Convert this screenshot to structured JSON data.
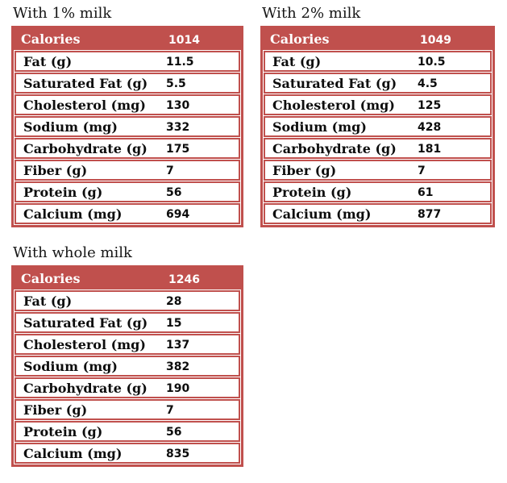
{
  "colors": {
    "accent": "#c0504d",
    "header_text": "#ffffff",
    "body_text": "#0d0d0d",
    "title_text": "#161616",
    "background": "#ffffff"
  },
  "tables": [
    {
      "title": "With 1% milk",
      "header": {
        "label": "Calories",
        "value": "1014"
      },
      "rows": [
        {
          "label": "Fat (g)",
          "value": "11.5"
        },
        {
          "label": "Saturated Fat (g)",
          "value": "5.5"
        },
        {
          "label": "Cholesterol (mg)",
          "value": "130"
        },
        {
          "label": "Sodium (mg)",
          "value": "332"
        },
        {
          "label": "Carbohydrate (g)",
          "value": "175"
        },
        {
          "label": "Fiber (g)",
          "value": "7"
        },
        {
          "label": "Protein (g)",
          "value": "56"
        },
        {
          "label": "Calcium (mg)",
          "value": "694"
        }
      ]
    },
    {
      "title": "With 2% milk",
      "header": {
        "label": "Calories",
        "value": "1049"
      },
      "rows": [
        {
          "label": "Fat (g)",
          "value": "10.5"
        },
        {
          "label": "Saturated Fat (g)",
          "value": "4.5"
        },
        {
          "label": "Cholesterol (mg)",
          "value": "125"
        },
        {
          "label": "Sodium (mg)",
          "value": "428"
        },
        {
          "label": "Carbohydrate (g)",
          "value": "181"
        },
        {
          "label": "Fiber (g)",
          "value": "7"
        },
        {
          "label": "Protein (g)",
          "value": "61"
        },
        {
          "label": "Calcium (mg)",
          "value": "877"
        }
      ]
    },
    {
      "title": "With whole milk",
      "header": {
        "label": "Calories",
        "value": "1246"
      },
      "rows": [
        {
          "label": "Fat (g)",
          "value": "28"
        },
        {
          "label": "Saturated Fat (g)",
          "value": "15"
        },
        {
          "label": "Cholesterol (mg)",
          "value": "137"
        },
        {
          "label": "Sodium (mg)",
          "value": "382"
        },
        {
          "label": "Carbohydrate (g)",
          "value": "190"
        },
        {
          "label": "Fiber (g)",
          "value": "7"
        },
        {
          "label": "Protein (g)",
          "value": "56"
        },
        {
          "label": "Calcium (mg)",
          "value": "835"
        }
      ]
    }
  ]
}
